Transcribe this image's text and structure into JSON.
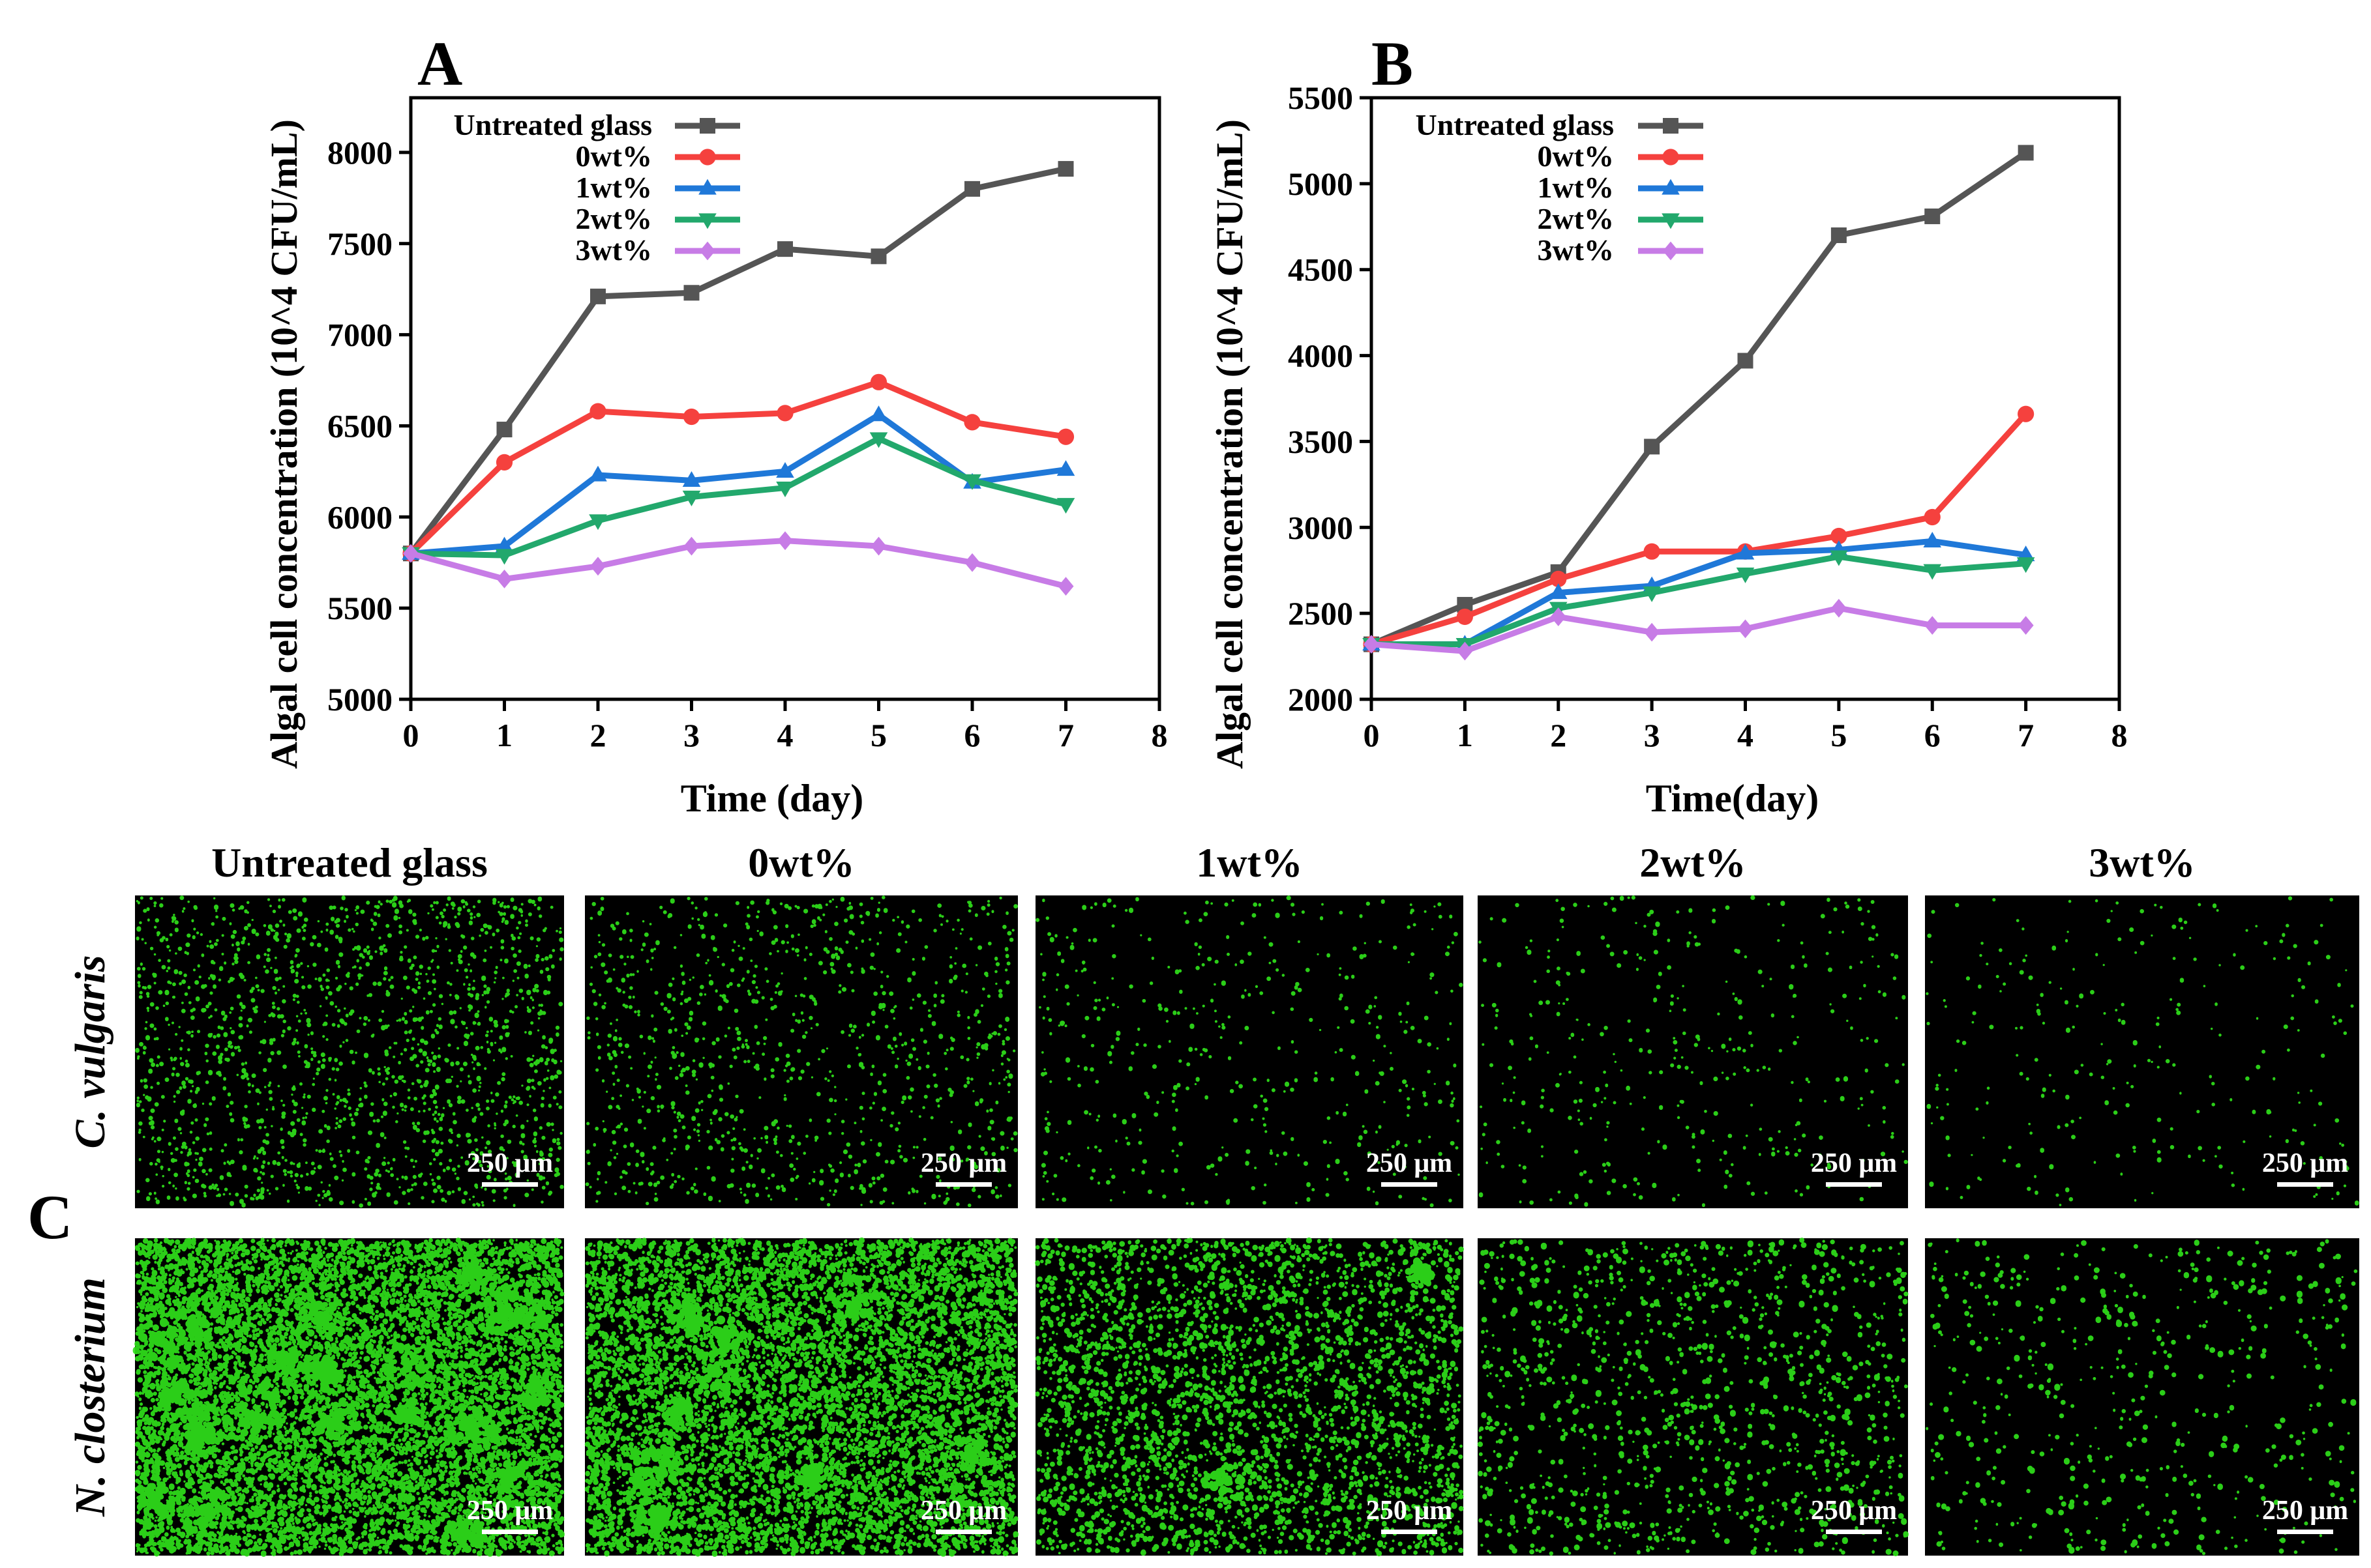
{
  "colors": {
    "untreated": "#555555",
    "wt0": "#f5413e",
    "wt1": "#1f78d8",
    "wt2": "#22a86c",
    "wt3": "#c77ce6",
    "micrograph_bg": "#000000",
    "cells": "#2fe01a",
    "scalebar": "#ffffff"
  },
  "chart_data": [
    {
      "id": "A",
      "panel_label": "A",
      "type": "line",
      "title": "",
      "xlabel": "Time (day)",
      "ylabel": "Algal cell concentration (10^4 CFU/mL)",
      "xlim": [
        0,
        8
      ],
      "ylim": [
        5000,
        8300
      ],
      "x_ticks": [
        0,
        1,
        2,
        3,
        4,
        5,
        6,
        7,
        8
      ],
      "y_ticks": [
        5000,
        5500,
        6000,
        6500,
        7000,
        7500,
        8000
      ],
      "grid": false,
      "legend_position": "top-left",
      "x": [
        0,
        1,
        2,
        3,
        4,
        5,
        6,
        7
      ],
      "series": [
        {
          "name": "Untreated glass",
          "color_key": "untreated",
          "marker": "square",
          "values": [
            5800,
            6480,
            7210,
            7230,
            7470,
            7430,
            7800,
            7910
          ]
        },
        {
          "name": "0wt%",
          "color_key": "wt0",
          "marker": "circle",
          "values": [
            5800,
            6300,
            6580,
            6550,
            6570,
            6740,
            6520,
            6440
          ]
        },
        {
          "name": "1wt%",
          "color_key": "wt1",
          "marker": "triangle-up",
          "values": [
            5800,
            5840,
            6230,
            6200,
            6250,
            6560,
            6190,
            6260
          ]
        },
        {
          "name": "2wt%",
          "color_key": "wt2",
          "marker": "triangle-down",
          "values": [
            5800,
            5790,
            5980,
            6110,
            6160,
            6430,
            6200,
            6070
          ]
        },
        {
          "name": "3wt%",
          "color_key": "wt3",
          "marker": "diamond",
          "values": [
            5800,
            5660,
            5730,
            5840,
            5870,
            5840,
            5750,
            5620
          ]
        }
      ]
    },
    {
      "id": "B",
      "panel_label": "B",
      "type": "line",
      "title": "",
      "xlabel": "Time(day)",
      "ylabel": "Algal cell concentration (10^4 CFU/mL)",
      "xlim": [
        0,
        8
      ],
      "ylim": [
        2000,
        5500
      ],
      "x_ticks": [
        0,
        1,
        2,
        3,
        4,
        5,
        6,
        7,
        8
      ],
      "y_ticks": [
        2000,
        2500,
        3000,
        3500,
        4000,
        4500,
        5000,
        5500
      ],
      "grid": false,
      "legend_position": "top-left",
      "x": [
        0,
        1,
        2,
        3,
        4,
        5,
        6,
        7
      ],
      "series": [
        {
          "name": "Untreated glass",
          "color_key": "untreated",
          "marker": "square",
          "values": [
            2320,
            2550,
            2740,
            3470,
            3970,
            4700,
            4810,
            5180
          ]
        },
        {
          "name": "0wt%",
          "color_key": "wt0",
          "marker": "circle",
          "values": [
            2320,
            2480,
            2700,
            2860,
            2860,
            2950,
            3060,
            3660
          ]
        },
        {
          "name": "1wt%",
          "color_key": "wt1",
          "marker": "triangle-up",
          "values": [
            2320,
            2320,
            2620,
            2660,
            2850,
            2870,
            2920,
            2840
          ]
        },
        {
          "name": "2wt%",
          "color_key": "wt2",
          "marker": "triangle-down",
          "values": [
            2320,
            2320,
            2530,
            2620,
            2730,
            2830,
            2750,
            2790
          ]
        },
        {
          "name": "3wt%",
          "color_key": "wt3",
          "marker": "diamond",
          "values": [
            2320,
            2280,
            2480,
            2390,
            2410,
            2530,
            2430,
            2430
          ]
        }
      ]
    }
  ],
  "micrographs": {
    "panel_label": "C",
    "columns": [
      "Untreated glass",
      "0wt%",
      "1wt%",
      "2wt%",
      "3wt%"
    ],
    "rows": [
      {
        "label": "C. vulgaris",
        "cell_counts": [
          1700,
          1000,
          450,
          380,
          260
        ],
        "cluster_counts": [
          0,
          0,
          0,
          0,
          0
        ]
      },
      {
        "label": "N. closterium",
        "cell_counts": [
          9000,
          7500,
          3200,
          1200,
          550
        ],
        "cluster_counts": [
          22,
          10,
          2,
          0,
          0
        ]
      }
    ],
    "scale_bar": "250 μm"
  }
}
